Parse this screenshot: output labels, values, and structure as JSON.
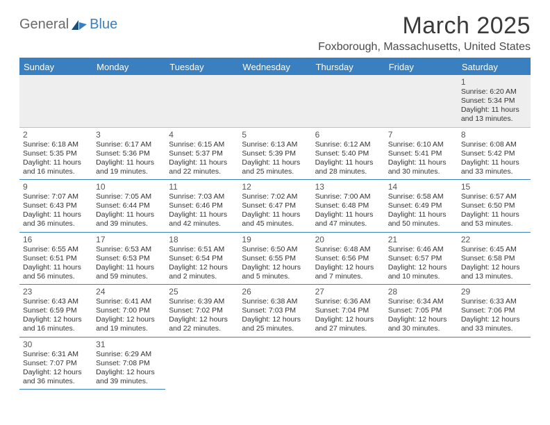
{
  "brand": {
    "part1": "General",
    "part2": "Blue"
  },
  "title": "March 2025",
  "location": "Foxborough, Massachusetts, United States",
  "colors": {
    "accent": "#3a7fbf",
    "header_bg": "#3a7fbf",
    "header_text": "#ffffff",
    "row_alt": "#eeeeee",
    "text": "#333333",
    "logo_gray": "#6a6a6a"
  },
  "weekdays": [
    "Sunday",
    "Monday",
    "Tuesday",
    "Wednesday",
    "Thursday",
    "Friday",
    "Saturday"
  ],
  "days": [
    {
      "n": 1,
      "sr": "6:20 AM",
      "ss": "5:34 PM",
      "dl": "11 hours and 13 minutes."
    },
    {
      "n": 2,
      "sr": "6:18 AM",
      "ss": "5:35 PM",
      "dl": "11 hours and 16 minutes."
    },
    {
      "n": 3,
      "sr": "6:17 AM",
      "ss": "5:36 PM",
      "dl": "11 hours and 19 minutes."
    },
    {
      "n": 4,
      "sr": "6:15 AM",
      "ss": "5:37 PM",
      "dl": "11 hours and 22 minutes."
    },
    {
      "n": 5,
      "sr": "6:13 AM",
      "ss": "5:39 PM",
      "dl": "11 hours and 25 minutes."
    },
    {
      "n": 6,
      "sr": "6:12 AM",
      "ss": "5:40 PM",
      "dl": "11 hours and 28 minutes."
    },
    {
      "n": 7,
      "sr": "6:10 AM",
      "ss": "5:41 PM",
      "dl": "11 hours and 30 minutes."
    },
    {
      "n": 8,
      "sr": "6:08 AM",
      "ss": "5:42 PM",
      "dl": "11 hours and 33 minutes."
    },
    {
      "n": 9,
      "sr": "7:07 AM",
      "ss": "6:43 PM",
      "dl": "11 hours and 36 minutes."
    },
    {
      "n": 10,
      "sr": "7:05 AM",
      "ss": "6:44 PM",
      "dl": "11 hours and 39 minutes."
    },
    {
      "n": 11,
      "sr": "7:03 AM",
      "ss": "6:46 PM",
      "dl": "11 hours and 42 minutes."
    },
    {
      "n": 12,
      "sr": "7:02 AM",
      "ss": "6:47 PM",
      "dl": "11 hours and 45 minutes."
    },
    {
      "n": 13,
      "sr": "7:00 AM",
      "ss": "6:48 PM",
      "dl": "11 hours and 47 minutes."
    },
    {
      "n": 14,
      "sr": "6:58 AM",
      "ss": "6:49 PM",
      "dl": "11 hours and 50 minutes."
    },
    {
      "n": 15,
      "sr": "6:57 AM",
      "ss": "6:50 PM",
      "dl": "11 hours and 53 minutes."
    },
    {
      "n": 16,
      "sr": "6:55 AM",
      "ss": "6:51 PM",
      "dl": "11 hours and 56 minutes."
    },
    {
      "n": 17,
      "sr": "6:53 AM",
      "ss": "6:53 PM",
      "dl": "11 hours and 59 minutes."
    },
    {
      "n": 18,
      "sr": "6:51 AM",
      "ss": "6:54 PM",
      "dl": "12 hours and 2 minutes."
    },
    {
      "n": 19,
      "sr": "6:50 AM",
      "ss": "6:55 PM",
      "dl": "12 hours and 5 minutes."
    },
    {
      "n": 20,
      "sr": "6:48 AM",
      "ss": "6:56 PM",
      "dl": "12 hours and 7 minutes."
    },
    {
      "n": 21,
      "sr": "6:46 AM",
      "ss": "6:57 PM",
      "dl": "12 hours and 10 minutes."
    },
    {
      "n": 22,
      "sr": "6:45 AM",
      "ss": "6:58 PM",
      "dl": "12 hours and 13 minutes."
    },
    {
      "n": 23,
      "sr": "6:43 AM",
      "ss": "6:59 PM",
      "dl": "12 hours and 16 minutes."
    },
    {
      "n": 24,
      "sr": "6:41 AM",
      "ss": "7:00 PM",
      "dl": "12 hours and 19 minutes."
    },
    {
      "n": 25,
      "sr": "6:39 AM",
      "ss": "7:02 PM",
      "dl": "12 hours and 22 minutes."
    },
    {
      "n": 26,
      "sr": "6:38 AM",
      "ss": "7:03 PM",
      "dl": "12 hours and 25 minutes."
    },
    {
      "n": 27,
      "sr": "6:36 AM",
      "ss": "7:04 PM",
      "dl": "12 hours and 27 minutes."
    },
    {
      "n": 28,
      "sr": "6:34 AM",
      "ss": "7:05 PM",
      "dl": "12 hours and 30 minutes."
    },
    {
      "n": 29,
      "sr": "6:33 AM",
      "ss": "7:06 PM",
      "dl": "12 hours and 33 minutes."
    },
    {
      "n": 30,
      "sr": "6:31 AM",
      "ss": "7:07 PM",
      "dl": "12 hours and 36 minutes."
    },
    {
      "n": 31,
      "sr": "6:29 AM",
      "ss": "7:08 PM",
      "dl": "12 hours and 39 minutes."
    }
  ],
  "labels": {
    "sunrise": "Sunrise:",
    "sunset": "Sunset:",
    "daylight": "Daylight:"
  },
  "layout": {
    "lead_blanks": 6,
    "trail_blanks": 5,
    "cols": 7
  }
}
